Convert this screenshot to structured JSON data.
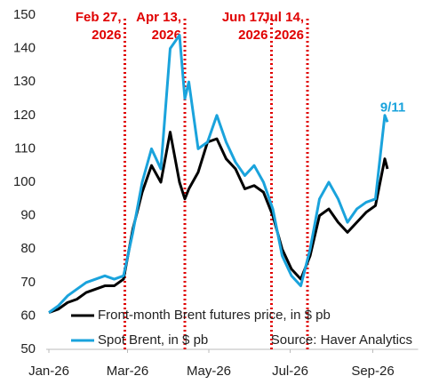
{
  "chart_data": {
    "type": "line",
    "x": [
      0,
      7,
      14,
      21,
      28,
      35,
      42,
      49,
      56,
      63,
      70,
      77,
      84,
      91,
      98,
      102,
      105,
      112,
      119,
      126,
      133,
      140,
      147,
      154,
      161,
      168,
      175,
      182,
      189,
      196,
      203,
      210,
      217,
      224,
      231,
      238,
      245,
      252,
      254
    ],
    "series": [
      {
        "name": "Front-month Brent futures price, in $ pb",
        "color": "#000000",
        "values": [
          61,
          62,
          64,
          65,
          67,
          68,
          69,
          69,
          71,
          86,
          97,
          105,
          100,
          115,
          100,
          95,
          98,
          103,
          112,
          113,
          107,
          104,
          98,
          99,
          97,
          90,
          80,
          74,
          71,
          78,
          90,
          92,
          88,
          85,
          88,
          91,
          93,
          107,
          104
        ]
      },
      {
        "name": "Spot Brent, in $ pb",
        "color": "#1aa3dc",
        "end_label": "9/11",
        "values": [
          61,
          63,
          66,
          68,
          70,
          71,
          72,
          71,
          72,
          85,
          100,
          110,
          104,
          140,
          144,
          125,
          130,
          110,
          112,
          120,
          112,
          106,
          102,
          105,
          100,
          92,
          78,
          72,
          69,
          80,
          95,
          100,
          95,
          88,
          92,
          94,
          95,
          120,
          118
        ]
      }
    ],
    "xlim": [
      -2,
      277
    ],
    "xticks": [
      {
        "value": 0,
        "label": "Jan-26"
      },
      {
        "value": 59,
        "label": "Mar-26"
      },
      {
        "value": 120,
        "label": "May-26"
      },
      {
        "value": 181,
        "label": "Jul-26"
      },
      {
        "value": 243,
        "label": "Sep-26"
      }
    ],
    "ylim": [
      50,
      150
    ],
    "yticks": [
      50,
      60,
      70,
      80,
      90,
      100,
      110,
      120,
      130,
      140,
      150
    ],
    "annotations": [
      {
        "x": 57,
        "lines": [
          "Feb 27,",
          "2026"
        ]
      },
      {
        "x": 102,
        "lines": [
          "Apr 13,",
          "2026"
        ]
      },
      {
        "x": 167,
        "lines": [
          "Jun 17,",
          "2026"
        ]
      },
      {
        "x": 194,
        "lines": [
          "Jul 14,",
          "2026"
        ]
      }
    ],
    "annotation_color": "#e00000",
    "source": "Source: Haver Analytics",
    "legend": "bottom"
  }
}
